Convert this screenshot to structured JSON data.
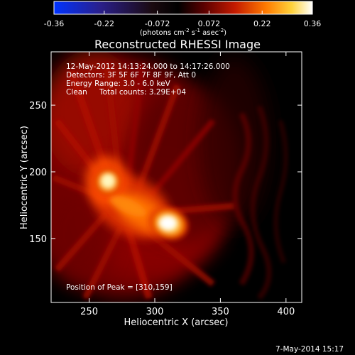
{
  "plot": {
    "title": "Reconstructed RHESSI Image",
    "xlabel": "Heliocentric X (arcsec)",
    "ylabel": "Heliocentric Y (arcsec)",
    "xticks": [
      "250",
      "300",
      "350",
      "400"
    ],
    "yticks": [
      "150",
      "200",
      "250"
    ],
    "xrange": [
      221,
      412
    ],
    "yrange": [
      102,
      290
    ]
  },
  "colorbar": {
    "ticks": [
      "-0.36",
      "-0.22",
      "-0.072",
      "0.072",
      "0.22",
      "0.36"
    ],
    "range": [
      -0.36,
      0.36
    ],
    "unit_prefix": "(photons cm",
    "unit_sup1": "-2",
    "unit_mid": " s",
    "unit_sup2": "-1",
    "unit_mid2": " asec",
    "unit_sup3": "-2",
    "unit_suffix": ")"
  },
  "annotations": {
    "line1": "12-May-2012 14:13:24.000 to 14:17:26.000",
    "line2": "Detectors: 3F 5F 6F 7F 8F 9F, Att 0",
    "line3": "Energy Range: 3.0 - 6.0 keV",
    "line4_a": "Clean",
    "line4_b": "Total counts: 3.29E+04",
    "peak": "Position of Peak = [310,159]"
  },
  "footer": {
    "date": "7-May-2014 15:17"
  },
  "colors": {
    "background": "#000000",
    "text": "#ffffff"
  }
}
